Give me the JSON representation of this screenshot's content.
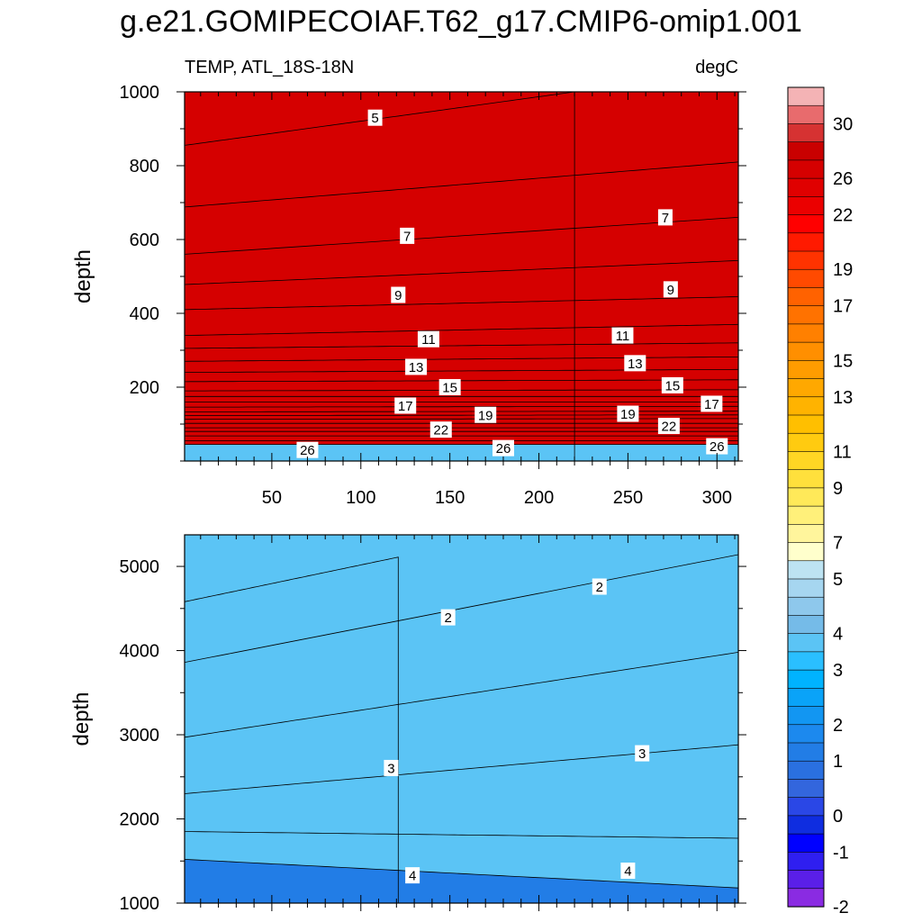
{
  "title": "g.e21.GOMIPECOIAF.T62_g17.CMIP6-omip1.001",
  "subtitle_left": "TEMP, ATL_18S-18N",
  "subtitle_right": "degC",
  "chart_data": [
    {
      "type": "contour",
      "panel": "top",
      "title": "TEMP, ATL_18S-18N",
      "units": "degC",
      "xlabel": "",
      "ylabel": "depth",
      "xlim": [
        1,
        312
      ],
      "ylim": [
        1000,
        0
      ],
      "xticks": [
        50,
        100,
        150,
        200,
        250,
        300
      ],
      "yticks": [
        200,
        400,
        600,
        800,
        1000
      ],
      "contours": [
        {
          "level": 27,
          "x": [
            1,
            312
          ],
          "depth": [
            45,
            45
          ]
        },
        {
          "level": 26,
          "x": [
            1,
            312
          ],
          "depth": [
            55,
            55
          ]
        },
        {
          "level": 25,
          "x": [
            1,
            312
          ],
          "depth": [
            68,
            68
          ]
        },
        {
          "level": 24,
          "x": [
            1,
            312
          ],
          "depth": [
            80,
            80
          ]
        },
        {
          "level": 23,
          "x": [
            1,
            312
          ],
          "depth": [
            90,
            90
          ]
        },
        {
          "level": 22,
          "x": [
            1,
            312
          ],
          "depth": [
            102,
            102
          ]
        },
        {
          "level": 21,
          "x": [
            1,
            312
          ],
          "depth": [
            113,
            115
          ]
        },
        {
          "level": 20,
          "x": [
            1,
            312
          ],
          "depth": [
            123,
            125
          ]
        },
        {
          "level": 19,
          "x": [
            1,
            312
          ],
          "depth": [
            133,
            135
          ]
        },
        {
          "level": 18,
          "x": [
            1,
            312
          ],
          "depth": [
            146,
            148
          ]
        },
        {
          "level": 17,
          "x": [
            1,
            312
          ],
          "depth": [
            160,
            160
          ]
        },
        {
          "level": 16,
          "x": [
            1,
            312
          ],
          "depth": [
            175,
            175
          ]
        },
        {
          "level": 15,
          "x": [
            1,
            312
          ],
          "depth": [
            190,
            193
          ]
        },
        {
          "level": 14,
          "x": [
            1,
            312
          ],
          "depth": [
            215,
            220
          ]
        },
        {
          "level": 13,
          "x": [
            1,
            312
          ],
          "depth": [
            240,
            248
          ]
        },
        {
          "level": 12,
          "x": [
            1,
            312
          ],
          "depth": [
            270,
            282
          ]
        },
        {
          "level": 11,
          "x": [
            1,
            312
          ],
          "depth": [
            305,
            320
          ]
        },
        {
          "level": 10,
          "x": [
            1,
            312
          ],
          "depth": [
            340,
            370
          ]
        },
        {
          "level": 9,
          "x": [
            1,
            312
          ],
          "depth": [
            410,
            445
          ]
        },
        {
          "level": 8,
          "x": [
            1,
            312
          ],
          "depth": [
            478,
            543
          ]
        },
        {
          "level": 7,
          "x": [
            1,
            312
          ],
          "depth": [
            560,
            660
          ]
        },
        {
          "level": 6,
          "x": [
            1,
            312
          ],
          "depth": [
            688,
            810
          ]
        },
        {
          "level": 5,
          "x": [
            1,
            220
          ],
          "depth": [
            855,
            1000
          ]
        }
      ],
      "contour_labels": [
        {
          "text": "26",
          "x": [
            70,
            180,
            300
          ],
          "depth": [
            30,
            35,
            40
          ]
        },
        {
          "text": "22",
          "x": [
            145,
            273
          ],
          "depth": [
            85,
            95
          ]
        },
        {
          "text": "19",
          "x": [
            170,
            250
          ],
          "depth": [
            125,
            128
          ]
        },
        {
          "text": "17",
          "x": [
            125,
            297
          ],
          "depth": [
            150,
            155
          ]
        },
        {
          "text": "15",
          "x": [
            150,
            275
          ],
          "depth": [
            200,
            205
          ]
        },
        {
          "text": "13",
          "x": [
            131,
            254
          ],
          "depth": [
            255,
            265
          ]
        },
        {
          "text": "11",
          "x": [
            138,
            247
          ],
          "depth": [
            330,
            340
          ]
        },
        {
          "text": "9",
          "x": [
            121,
            274
          ],
          "depth": [
            450,
            465
          ]
        },
        {
          "text": "7",
          "x": [
            126,
            271
          ],
          "depth": [
            610,
            660
          ]
        },
        {
          "text": "5",
          "x": [
            108
          ],
          "depth": [
            930
          ]
        }
      ]
    },
    {
      "type": "contour",
      "panel": "bottom",
      "xlabel": "",
      "ylabel": "depth",
      "xlim": [
        1,
        312
      ],
      "ylim": [
        5375,
        1000
      ],
      "xticks": [
        50,
        100,
        150,
        200,
        250,
        300
      ],
      "yticks": [
        1000,
        2000,
        3000,
        4000,
        5000
      ],
      "contours": [
        {
          "level": 4.5,
          "x": [
            1,
            312
          ],
          "depth": [
            1520,
            1180
          ]
        },
        {
          "level": 4,
          "x": [
            1,
            312
          ],
          "depth": [
            1850,
            1770
          ]
        },
        {
          "level": 3.5,
          "x": [
            1,
            312
          ],
          "depth": [
            2300,
            2880
          ]
        },
        {
          "level": 3,
          "x": [
            1,
            312
          ],
          "depth": [
            2970,
            3980
          ]
        },
        {
          "level": 2.5,
          "x": [
            1,
            312
          ],
          "depth": [
            3860,
            5140
          ]
        },
        {
          "level": 2,
          "x": [
            1,
            121
          ],
          "depth": [
            4580,
            5110
          ]
        }
      ],
      "contour_labels": [
        {
          "text": "4",
          "x": [
            129,
            250
          ],
          "depth": [
            1330,
            1385
          ]
        },
        {
          "text": "3",
          "x": [
            117,
            258
          ],
          "depth": [
            2605,
            2780
          ]
        },
        {
          "text": "2",
          "x": [
            149,
            234
          ],
          "depth": [
            4395,
            4760
          ]
        }
      ]
    },
    {
      "type": "colorbar",
      "levels": [
        -2.5,
        -2,
        -1.5,
        -1,
        -0.5,
        0,
        0.5,
        1,
        1.5,
        2,
        2.5,
        3,
        3.5,
        4,
        4.5,
        5,
        5.5,
        6,
        6.5,
        7,
        7.5,
        8,
        9,
        10,
        11,
        12,
        13,
        14,
        15,
        16,
        17,
        18,
        19,
        20,
        21,
        22,
        23,
        24,
        25,
        26,
        27,
        28,
        29,
        30,
        31,
        32
      ],
      "tick_labels": [
        "-2",
        "-1",
        "0",
        "1",
        "2",
        "3",
        "4",
        "5",
        "7",
        "9",
        "11",
        "13",
        "15",
        "17",
        "19",
        "22",
        "26",
        "30"
      ],
      "colors": [
        "#f4b3b5",
        "#e86b6d",
        "#d63232",
        "#c90000",
        "#d50000",
        "#e00000",
        "#eb0000",
        "#ff0000",
        "#ff1a00",
        "#ff3300",
        "#ff4a00",
        "#ff6200",
        "#ff7200",
        "#ff8000",
        "#ff8f00",
        "#ff9c00",
        "#ffa800",
        "#ffb300",
        "#ffbf00",
        "#ffcb10",
        "#ffd624",
        "#ffe03c",
        "#ffe959",
        "#fff07a",
        "#fff59c",
        "#ffffcc",
        "#bde3f2",
        "#a6d6f0",
        "#8ec8ec",
        "#75bbe8",
        "#5bc4f5",
        "#2abfff",
        "#00b3ff",
        "#0aa3f8",
        "#1296f2",
        "#1c89ee",
        "#227de6",
        "#2a70e0",
        "#3366dd",
        "#2a47e6",
        "#0f2de0",
        "#0000ff",
        "#2f1ff0",
        "#5a1fe8",
        "#8a2be2"
      ]
    }
  ]
}
